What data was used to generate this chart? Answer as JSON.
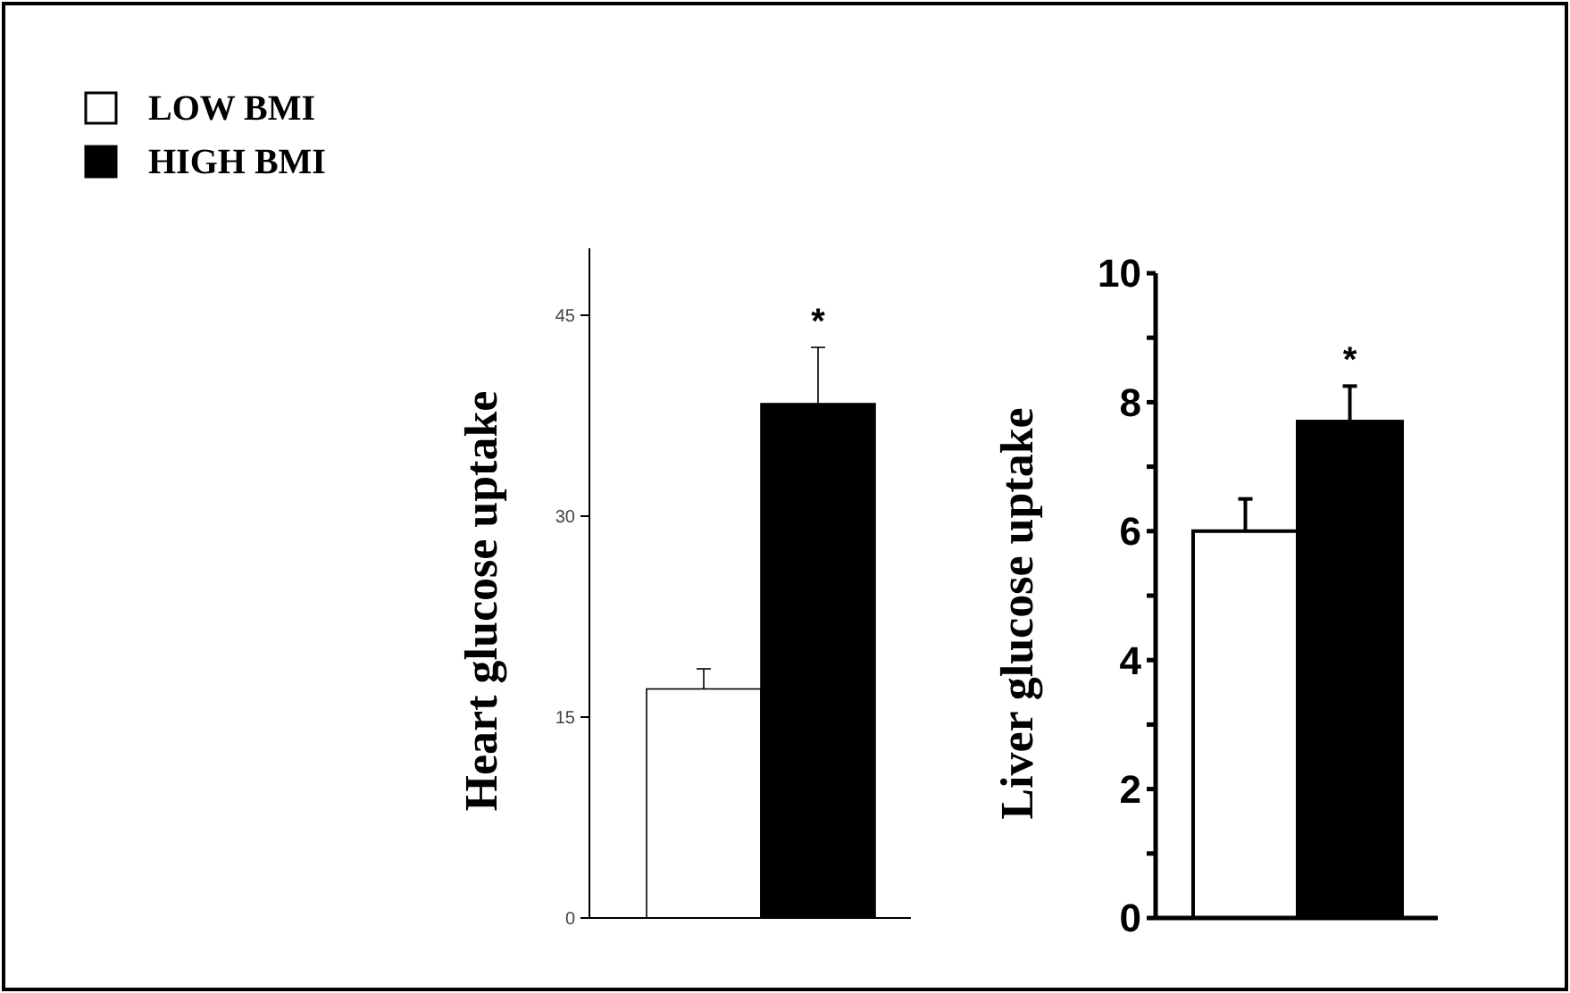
{
  "chart_data": [
    {
      "type": "bar",
      "ylabel": "Heart glucose uptake",
      "categories": [
        null
      ],
      "ylim": [
        0,
        50
      ],
      "yticks": [
        0,
        15,
        30,
        45
      ],
      "legend": "top left",
      "annotations": [
        "*"
      ],
      "series": [
        {
          "name": "LOW BMI",
          "color": "#ffffff",
          "values": [
            17.1
          ],
          "errors": [
            [
              17.1,
              18.6
            ]
          ]
        },
        {
          "name": "HIGH BMI",
          "color": "#000000",
          "values": [
            38.4
          ],
          "errors": [
            [
              38.4,
              42.6
            ]
          ]
        }
      ]
    },
    {
      "type": "bar",
      "ylabel": "Liver glucose uptake",
      "categories": [
        null
      ],
      "ylim": [
        0,
        10
      ],
      "yticks": [
        0,
        {
          "value": 1,
          "label": null
        },
        2,
        {
          "value": 3,
          "label": null
        },
        4,
        {
          "value": 5,
          "label": null
        },
        6,
        {
          "value": 7,
          "label": null
        },
        8,
        {
          "value": 9,
          "label": null
        },
        10
      ],
      "legend": false,
      "annotations": [
        "*"
      ],
      "series": [
        {
          "color": "#ffffff",
          "values": [
            6.0
          ],
          "errors": [
            [
              6.0,
              6.5
            ]
          ]
        },
        {
          "color": "#000000",
          "values": [
            7.7
          ],
          "errors": [
            [
              7.7,
              8.25
            ]
          ]
        }
      ]
    }
  ]
}
